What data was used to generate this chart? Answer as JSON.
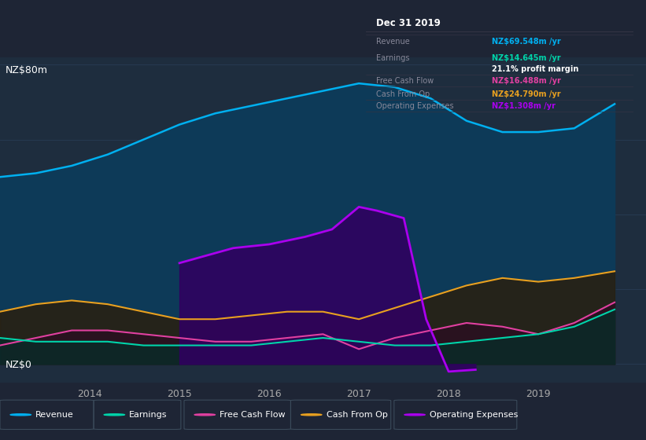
{
  "background_color": "#1e2535",
  "plot_bg_color": "#1e2d3e",
  "years": [
    2013.0,
    2013.4,
    2013.8,
    2014.2,
    2014.6,
    2015.0,
    2015.4,
    2015.8,
    2016.2,
    2016.6,
    2017.0,
    2017.4,
    2017.8,
    2018.2,
    2018.6,
    2019.0,
    2019.4,
    2019.85
  ],
  "revenue": [
    50,
    51,
    53,
    56,
    60,
    64,
    67,
    69,
    71,
    73,
    75,
    74,
    71,
    65,
    62,
    62,
    63,
    69.5
  ],
  "earnings": [
    7,
    6,
    6,
    6,
    5,
    5,
    5,
    5,
    6,
    7,
    6,
    5,
    5,
    6,
    7,
    8,
    10,
    14.6
  ],
  "free_cash_flow": [
    5,
    7,
    9,
    9,
    8,
    7,
    6,
    6,
    7,
    8,
    4,
    7,
    9,
    11,
    10,
    8,
    11,
    16.5
  ],
  "cash_from_op": [
    14,
    16,
    17,
    16,
    14,
    12,
    12,
    13,
    14,
    14,
    12,
    15,
    18,
    21,
    23,
    22,
    23,
    24.8
  ],
  "op_expenses_x": [
    2015.0,
    2015.3,
    2015.6,
    2016.0,
    2016.4,
    2016.7,
    2017.0,
    2017.2,
    2017.5,
    2017.75,
    2018.0,
    2018.3
  ],
  "op_expenses_y": [
    27,
    29,
    31,
    32,
    34,
    36,
    42,
    41,
    39,
    12,
    -2,
    -1.5
  ],
  "revenue_color": "#00b0f0",
  "earnings_color": "#00d4aa",
  "free_cash_flow_color": "#e040a0",
  "cash_from_op_color": "#e8a020",
  "op_expenses_color": "#aa00ee",
  "revenue_fill_color": "#0d3d5e",
  "ylabel_top": "NZ$80m",
  "ylabel_bottom": "NZ$0",
  "xlim": [
    2013.0,
    2020.2
  ],
  "ylim": [
    -5,
    82
  ],
  "xticks": [
    2014,
    2015,
    2016,
    2017,
    2018,
    2019
  ],
  "info_title": "Dec 31 2019",
  "legend_items": [
    [
      "Revenue",
      "#00b0f0"
    ],
    [
      "Earnings",
      "#00d4aa"
    ],
    [
      "Free Cash Flow",
      "#e040a0"
    ],
    [
      "Cash From Op",
      "#e8a020"
    ],
    [
      "Operating Expenses",
      "#aa00ee"
    ]
  ]
}
